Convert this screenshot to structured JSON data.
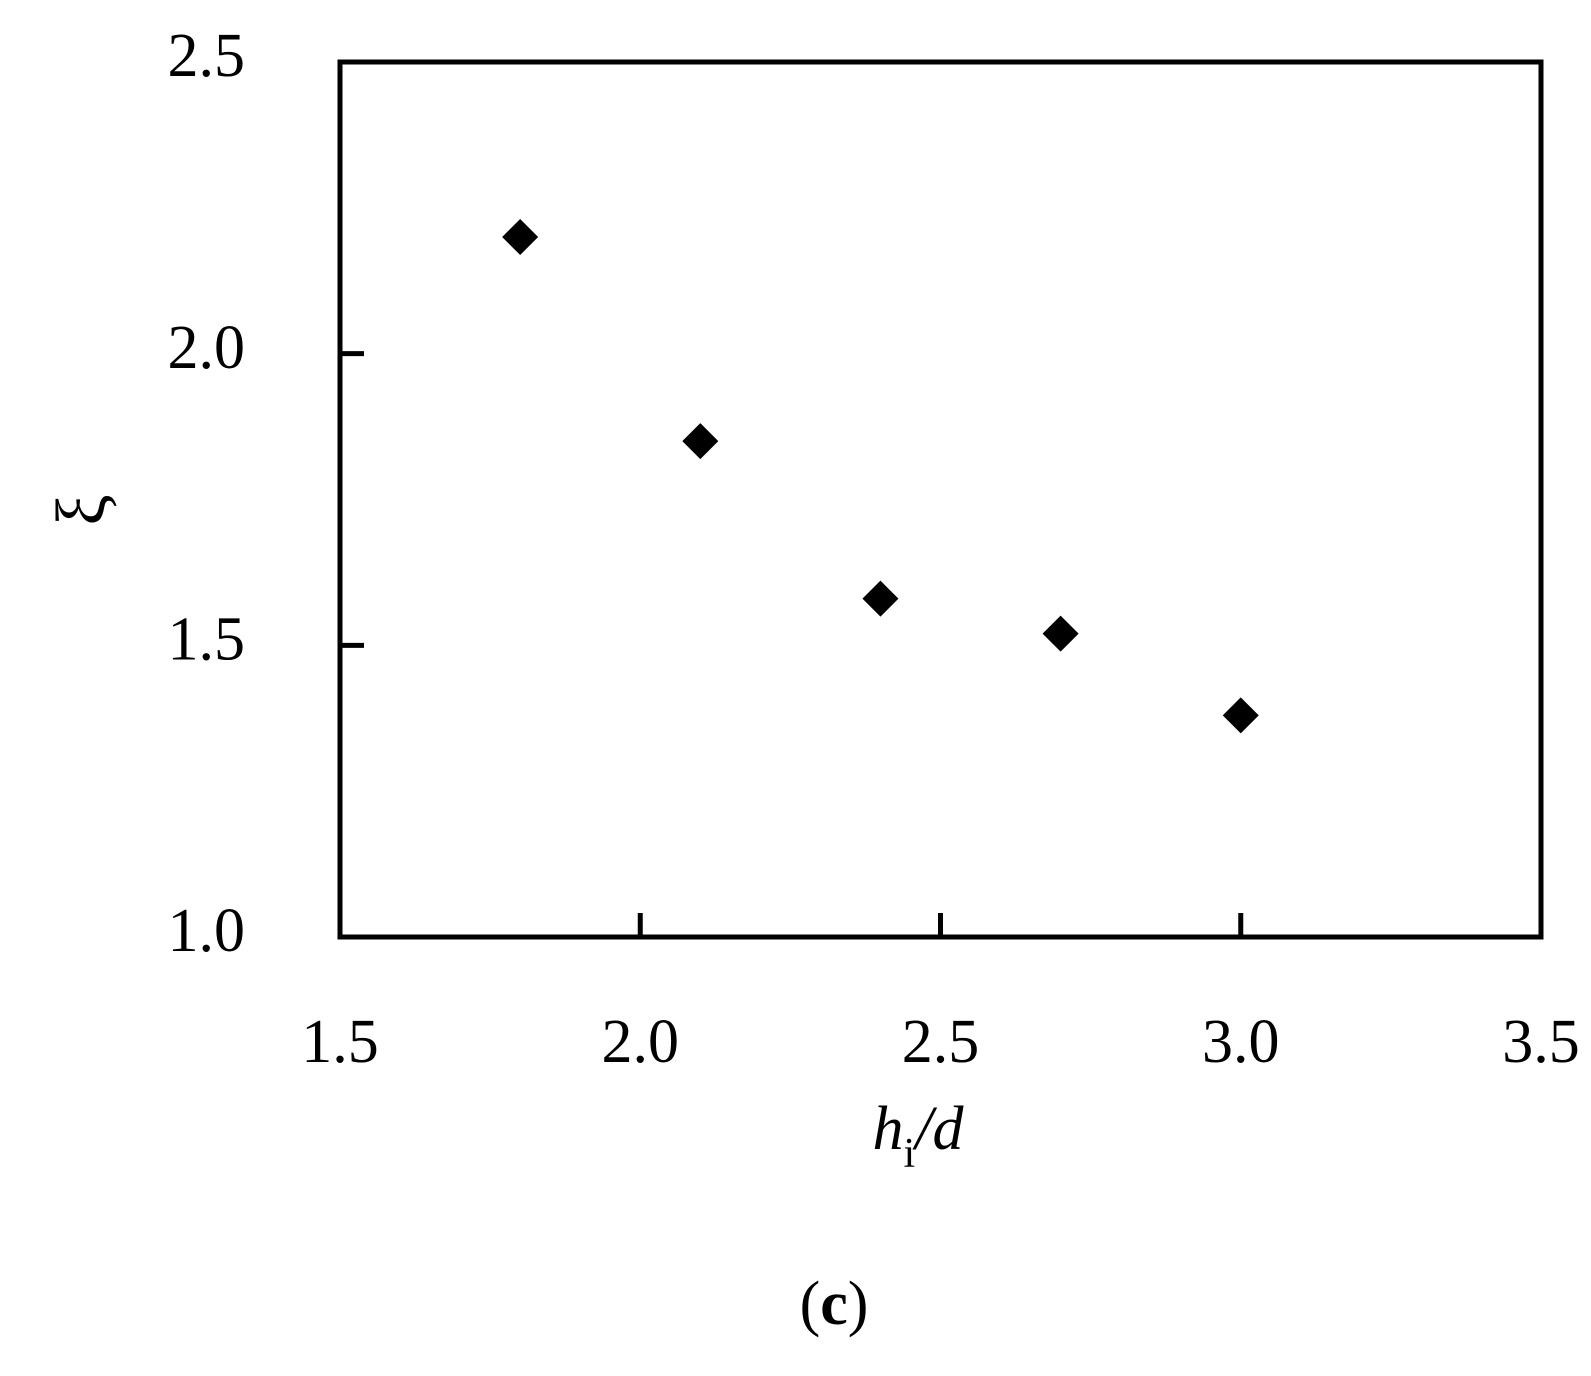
{
  "chart_data": {
    "type": "scatter",
    "x_label_parts": [
      "h",
      "i",
      "/d"
    ],
    "y_label": "ξ",
    "caption_parts": [
      "(",
      "c",
      ")"
    ],
    "x": [
      1.8,
      2.1,
      2.4,
      2.7,
      3.0
    ],
    "series": [
      {
        "color": "#000000",
        "values": [
          2.2,
          1.85,
          1.58,
          1.52,
          1.38
        ]
      }
    ],
    "xlim": [
      1.5,
      3.5
    ],
    "xticks": [
      1.5,
      {
        "value": 2,
        "label": "2.0"
      },
      2.5,
      {
        "value": 3,
        "label": "3.0"
      },
      3.5
    ],
    "ylim": [
      1.0,
      2.5
    ],
    "yticks": [
      {
        "value": 1,
        "label": "1.0"
      },
      1.5,
      {
        "value": 2,
        "label": "2.0"
      },
      2.5
    ],
    "grid": false
  }
}
